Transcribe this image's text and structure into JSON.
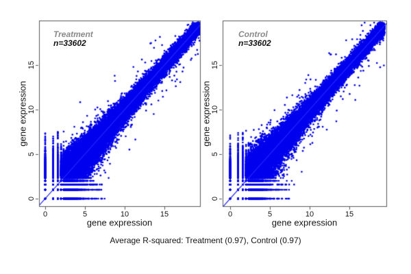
{
  "figure": {
    "caption": "Average R-squared: Treatment (0.97), Control (0.97)"
  },
  "chart_data": [
    {
      "type": "scatter",
      "title": "Treatment",
      "n_label": "n=33602",
      "n_points": 33602,
      "xlabel": "gene expression",
      "ylabel": "gene expression",
      "xticks": [
        0,
        5,
        10,
        15
      ],
      "yticks": [
        0,
        5,
        10,
        15
      ],
      "xlim": [
        -0.8,
        19.5
      ],
      "ylim": [
        -0.85,
        20
      ],
      "r_squared": 0.97,
      "identity_line": true,
      "grid": false,
      "legend": "none",
      "point_color": "#0101ee",
      "line_color": "#2323ff",
      "title_color": "#8a8a8a",
      "n_label_color": "#111111",
      "distribution_note": "replicate-vs-replicate log2 expression: dense diagonal cloud from ~1.5 to ~19, variance funnels wider at low values, sparse outliers off the diagonal, discrete stripes at low counts",
      "quantization_levels": [
        0,
        1,
        1.585,
        2,
        2.322
      ],
      "seed": 11
    },
    {
      "type": "scatter",
      "title": "Control",
      "n_label": "n=33602",
      "n_points": 33602,
      "xlabel": "gene expression",
      "ylabel": "gene expression",
      "xticks": [
        0,
        5,
        10,
        15
      ],
      "yticks": [
        0,
        5,
        10,
        15
      ],
      "xlim": [
        -0.8,
        19.6
      ],
      "ylim": [
        -0.85,
        20
      ],
      "r_squared": 0.97,
      "identity_line": true,
      "grid": false,
      "legend": "none",
      "point_color": "#0101ee",
      "line_color": "#2323ff",
      "title_color": "#8a8a8a",
      "n_label_color": "#111111",
      "distribution_note": "replicate-vs-replicate log2 expression: dense diagonal cloud from ~1.5 to ~19, variance funnels wider at low values, sparse outliers off the diagonal, discrete stripes at low counts",
      "quantization_levels": [
        0,
        1,
        1.585,
        2,
        2.322
      ],
      "seed": 29
    }
  ]
}
